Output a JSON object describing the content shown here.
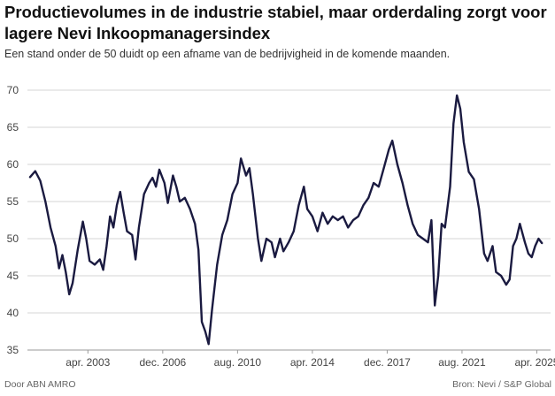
{
  "header": {
    "title": "Productievolumes in de industrie stabiel, maar orderdaling zorgt voor lagere Nevi Inkoopmanagersindex",
    "subtitle": "Een stand onder de 50 duidt op een afname van de bedrijvigheid in de komende maanden."
  },
  "footer": {
    "source_left": "Door ABN AMRO",
    "source_right": "Bron: Nevi / S&P Global"
  },
  "colors": {
    "line": "#1a1a40",
    "grid": "#d6d6d6",
    "axis_text": "#444444"
  },
  "chart_data": {
    "type": "line",
    "title": "Productievolumes in de industrie stabiel, maar orderdaling zorgt voor lagere Nevi Inkoopmanagersindex",
    "xlabel": "",
    "ylabel": "",
    "ylim": [
      35,
      70
    ],
    "yticks": [
      35,
      40,
      45,
      50,
      55,
      60,
      65,
      70
    ],
    "xlim": [
      "2000-06",
      "2025-10"
    ],
    "xticks": [
      {
        "date": "2003-04",
        "label": "apr. 2003"
      },
      {
        "date": "2006-12",
        "label": "dec. 2006"
      },
      {
        "date": "2010-08",
        "label": "aug. 2010"
      },
      {
        "date": "2014-04",
        "label": "apr. 2014"
      },
      {
        "date": "2017-12",
        "label": "dec. 2017"
      },
      {
        "date": "2021-08",
        "label": "aug. 2021"
      },
      {
        "date": "2025-04",
        "label": "apr. 2025"
      }
    ],
    "grid": true,
    "legend": "none",
    "series": [
      {
        "points": [
          [
            "2000-06",
            58.3
          ],
          [
            "2000-09",
            59.1
          ],
          [
            "2000-12",
            57.8
          ],
          [
            "2001-03",
            55.0
          ],
          [
            "2001-06",
            51.5
          ],
          [
            "2001-09",
            49.0
          ],
          [
            "2001-11",
            46.0
          ],
          [
            "2002-01",
            47.8
          ],
          [
            "2002-03",
            45.5
          ],
          [
            "2002-05",
            42.5
          ],
          [
            "2002-07",
            44.0
          ],
          [
            "2002-10",
            48.5
          ],
          [
            "2003-01",
            52.3
          ],
          [
            "2003-03",
            50.0
          ],
          [
            "2003-05",
            47.0
          ],
          [
            "2003-08",
            46.5
          ],
          [
            "2003-11",
            47.2
          ],
          [
            "2004-01",
            45.8
          ],
          [
            "2004-03",
            49.0
          ],
          [
            "2004-05",
            53.0
          ],
          [
            "2004-07",
            51.5
          ],
          [
            "2004-09",
            54.5
          ],
          [
            "2004-11",
            56.3
          ],
          [
            "2005-01",
            53.5
          ],
          [
            "2005-03",
            51.0
          ],
          [
            "2005-06",
            50.5
          ],
          [
            "2005-08",
            47.2
          ],
          [
            "2005-10",
            51.5
          ],
          [
            "2006-01",
            56.0
          ],
          [
            "2006-04",
            57.5
          ],
          [
            "2006-06",
            58.2
          ],
          [
            "2006-08",
            57.0
          ],
          [
            "2006-10",
            59.3
          ],
          [
            "2007-01",
            57.5
          ],
          [
            "2007-03",
            54.8
          ],
          [
            "2007-06",
            58.5
          ],
          [
            "2007-08",
            57.0
          ],
          [
            "2007-10",
            55.0
          ],
          [
            "2008-01",
            55.5
          ],
          [
            "2008-04",
            54.0
          ],
          [
            "2008-07",
            52.0
          ],
          [
            "2008-09",
            48.5
          ],
          [
            "2008-11",
            38.8
          ],
          [
            "2009-01",
            37.5
          ],
          [
            "2009-03",
            35.8
          ],
          [
            "2009-05",
            40.5
          ],
          [
            "2009-08",
            46.5
          ],
          [
            "2009-11",
            50.5
          ],
          [
            "2010-02",
            52.5
          ],
          [
            "2010-05",
            56.0
          ],
          [
            "2010-08",
            57.5
          ],
          [
            "2010-10",
            60.8
          ],
          [
            "2011-01",
            58.5
          ],
          [
            "2011-03",
            59.5
          ],
          [
            "2011-05",
            56.0
          ],
          [
            "2011-08",
            50.0
          ],
          [
            "2011-10",
            47.0
          ],
          [
            "2012-01",
            50.0
          ],
          [
            "2012-04",
            49.5
          ],
          [
            "2012-06",
            47.5
          ],
          [
            "2012-09",
            50.0
          ],
          [
            "2012-11",
            48.3
          ],
          [
            "2013-02",
            49.5
          ],
          [
            "2013-05",
            51.0
          ],
          [
            "2013-08",
            54.5
          ],
          [
            "2013-11",
            57.0
          ],
          [
            "2014-01",
            54.0
          ],
          [
            "2014-04",
            53.0
          ],
          [
            "2014-07",
            51.0
          ],
          [
            "2014-10",
            53.5
          ],
          [
            "2015-01",
            52.0
          ],
          [
            "2015-04",
            53.0
          ],
          [
            "2015-07",
            52.5
          ],
          [
            "2015-10",
            53.0
          ],
          [
            "2016-01",
            51.5
          ],
          [
            "2016-04",
            52.5
          ],
          [
            "2016-07",
            53.0
          ],
          [
            "2016-10",
            54.5
          ],
          [
            "2017-01",
            55.5
          ],
          [
            "2017-04",
            57.5
          ],
          [
            "2017-07",
            57.0
          ],
          [
            "2017-10",
            59.5
          ],
          [
            "2018-01",
            62.0
          ],
          [
            "2018-03",
            63.2
          ],
          [
            "2018-06",
            60.0
          ],
          [
            "2018-09",
            57.5
          ],
          [
            "2018-12",
            54.5
          ],
          [
            "2019-03",
            52.0
          ],
          [
            "2019-06",
            50.5
          ],
          [
            "2019-09",
            50.0
          ],
          [
            "2019-12",
            49.5
          ],
          [
            "2020-02",
            52.5
          ],
          [
            "2020-04",
            41.0
          ],
          [
            "2020-06",
            45.0
          ],
          [
            "2020-08",
            52.0
          ],
          [
            "2020-10",
            51.5
          ],
          [
            "2021-01",
            57.0
          ],
          [
            "2021-03",
            65.5
          ],
          [
            "2021-05",
            69.3
          ],
          [
            "2021-07",
            67.5
          ],
          [
            "2021-09",
            63.0
          ],
          [
            "2021-12",
            59.0
          ],
          [
            "2022-03",
            58.0
          ],
          [
            "2022-06",
            54.0
          ],
          [
            "2022-09",
            48.0
          ],
          [
            "2022-11",
            47.0
          ],
          [
            "2023-02",
            49.0
          ],
          [
            "2023-04",
            45.5
          ],
          [
            "2023-07",
            45.0
          ],
          [
            "2023-10",
            43.8
          ],
          [
            "2023-12",
            44.5
          ],
          [
            "2024-02",
            49.0
          ],
          [
            "2024-04",
            50.0
          ],
          [
            "2024-06",
            52.0
          ],
          [
            "2024-09",
            49.5
          ],
          [
            "2024-11",
            48.0
          ],
          [
            "2025-01",
            47.5
          ],
          [
            "2025-03",
            49.0
          ],
          [
            "2025-05",
            50.0
          ],
          [
            "2025-07",
            49.4
          ]
        ]
      }
    ]
  }
}
